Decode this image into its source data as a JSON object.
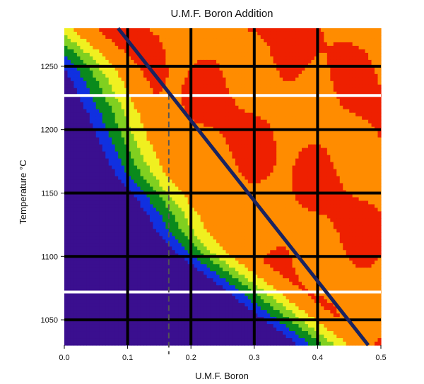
{
  "chart_data": {
    "type": "heatmap",
    "title": "U.M.F. Boron Addition",
    "xlabel": "U.M.F. Boron",
    "ylabel": "Temperature °C",
    "xlim": [
      0.0,
      0.5
    ],
    "ylim": [
      1030,
      1280
    ],
    "x_ticks": [
      "0.0",
      "0.1",
      "0.2",
      "0.3",
      "0.4",
      "0.5"
    ],
    "x_tick_values": [
      0.0,
      0.1,
      0.2,
      0.3,
      0.4,
      0.5
    ],
    "y_ticks": [
      "1050",
      "1100",
      "1150",
      "1200",
      "1250"
    ],
    "y_tick_values": [
      1050,
      1100,
      1150,
      1200,
      1250
    ],
    "black_gridlines_x": [
      0.1,
      0.2,
      0.3,
      0.4
    ],
    "black_gridlines_y": [
      1050,
      1100,
      1150,
      1200,
      1250
    ],
    "white_lines_y": [
      1072,
      1227
    ],
    "dashed_line_x": 0.165,
    "diagonal_line": [
      [
        0.085,
        1280
      ],
      [
        0.48,
        1030
      ]
    ],
    "colorscale": [
      "#3a0f8f",
      "#1030e0",
      "#0a8a1c",
      "#80d020",
      "#f0f020",
      "#ff8c00",
      "#ee2000"
    ],
    "boundary": {
      "y": [
        1030,
        1045,
        1060,
        1075,
        1090,
        1105,
        1120,
        1135,
        1150,
        1165,
        1180,
        1195,
        1210,
        1225,
        1240,
        1255,
        1280
      ],
      "x": [
        0.39,
        0.35,
        0.31,
        0.27,
        0.23,
        0.19,
        0.165,
        0.15,
        0.125,
        0.1,
        0.085,
        0.07,
        0.06,
        0.045,
        0.03,
        0.01,
        -0.05
      ]
    }
  }
}
